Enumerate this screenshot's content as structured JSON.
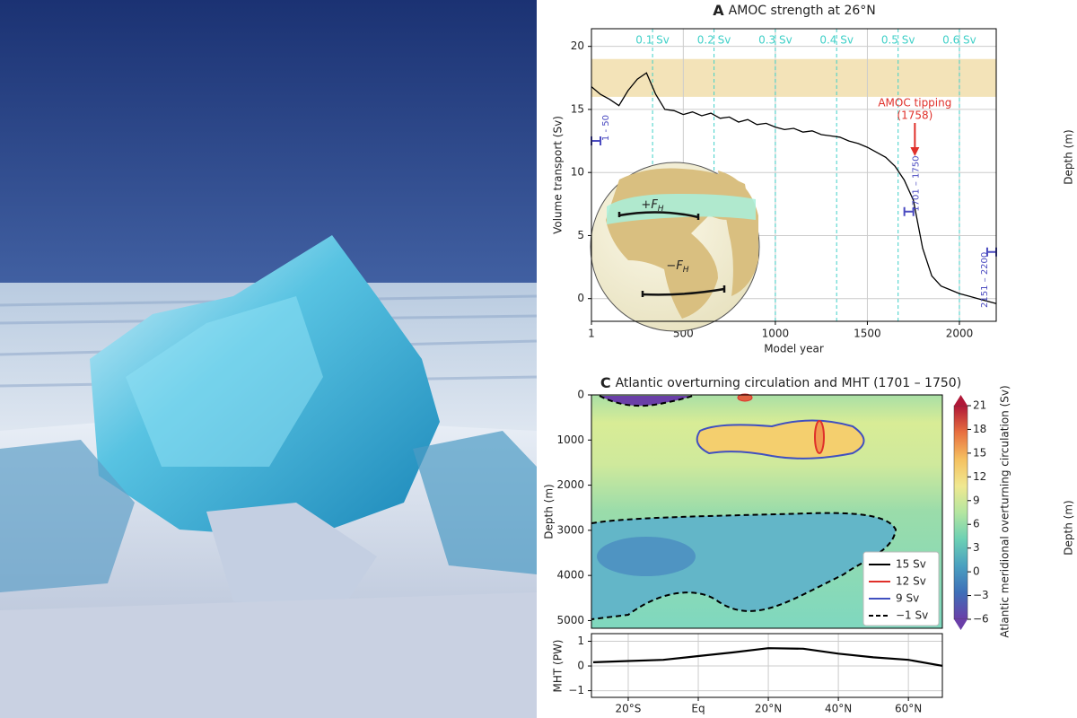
{
  "chart_data": [
    {
      "type": "line",
      "panel": "A",
      "title": "AMOC strength at 26°N",
      "x_label": "Model year",
      "y_label": "Volume transport (Sv)",
      "xlim": [
        1,
        2200
      ],
      "ylim": [
        -1.8,
        21.4
      ],
      "xticks": [
        1,
        500,
        1000,
        1500,
        2000
      ],
      "yticks": [
        0,
        5,
        10,
        15,
        20
      ],
      "grid": true,
      "band": [
        16,
        19
      ],
      "band_color": "#f3e3b8",
      "top_ticks": [
        {
          "value": 333,
          "label": "0.1 Sv"
        },
        {
          "value": 667,
          "label": "0.2 Sv"
        },
        {
          "value": 1000,
          "label": "0.3 Sv"
        },
        {
          "value": 1333,
          "label": "0.4 Sv"
        },
        {
          "value": 1667,
          "label": "0.5 Sv"
        },
        {
          "value": 2000,
          "label": "0.6 Sv"
        }
      ],
      "top_color": "#40d0c8",
      "x": [
        1,
        50,
        100,
        150,
        200,
        250,
        300,
        350,
        400,
        450,
        500,
        550,
        600,
        650,
        700,
        750,
        800,
        850,
        900,
        950,
        1000,
        1050,
        1100,
        1150,
        1200,
        1250,
        1300,
        1350,
        1400,
        1450,
        1500,
        1550,
        1600,
        1650,
        1700,
        1750,
        1800,
        1850,
        1900,
        1950,
        2000,
        2050,
        2100,
        2150,
        2200
      ],
      "series": [
        {
          "color": "#000000",
          "values": [
            16.8,
            16.2,
            15.8,
            15.3,
            16.5,
            17.4,
            17.9,
            16.2,
            15.0,
            14.9,
            14.6,
            14.8,
            14.5,
            14.7,
            14.3,
            14.4,
            14.0,
            14.2,
            13.8,
            13.9,
            13.6,
            13.4,
            13.5,
            13.2,
            13.3,
            13.0,
            12.9,
            12.8,
            12.5,
            12.3,
            12.0,
            11.6,
            11.2,
            10.5,
            9.4,
            7.8,
            4.0,
            1.8,
            1.0,
            0.7,
            0.4,
            0.2,
            0.0,
            -0.2,
            -0.4
          ]
        }
      ],
      "annotation": {
        "lines": [
          "AMOC tipping",
          "(1758)"
        ],
        "x": 1758,
        "color": "#e0302a"
      },
      "intervals": [
        {
          "label": "1 - 50",
          "start": 1,
          "end": 50,
          "y": 12.5
        },
        {
          "label": "1701 – 1750",
          "start": 1701,
          "end": 1750,
          "y": 6.9
        },
        {
          "label": "2151 – 2200",
          "start": 2151,
          "end": 2200,
          "y": 3.7
        }
      ],
      "interval_color": "#4a4ac0",
      "inset_labels": [
        {
          "main": "+F",
          "sub": "H"
        },
        {
          "main": "−F",
          "sub": "H"
        }
      ]
    },
    {
      "type": "contour",
      "panel": "C",
      "title": "Atlantic overturning circulation and MHT (1701 – 1750)",
      "y_label": "Depth (m)",
      "ylim": [
        0,
        5170
      ],
      "yticks": [
        0,
        1000,
        2000,
        3000,
        4000,
        5000
      ],
      "colorbar_label": "Atlantic meridional overturning circulation (Sv)",
      "colorbar_lim": [
        -6,
        21
      ],
      "colorbar_ticks": [
        {
          "value": -6,
          "label": "−6"
        },
        {
          "value": -3,
          "label": "−3"
        },
        0,
        3,
        6,
        9,
        12,
        15,
        18,
        21
      ],
      "colormap": [
        "#6a3fa8",
        "#3e6fb8",
        "#4aa0c0",
        "#6cd0b4",
        "#b4e6a0",
        "#f0e890",
        "#f5c060",
        "#e87040",
        "#b01838"
      ],
      "legend": [
        {
          "name": "15 Sv",
          "color": "#000000",
          "dashed": false
        },
        {
          "name": "12 Sv",
          "color": "#e0302a",
          "dashed": false
        },
        {
          "name": "9 Sv",
          "color": "#4050c0",
          "dashed": false
        },
        {
          "name": "−1 Sv",
          "color": "#000000",
          "dashed": true
        }
      ]
    },
    {
      "type": "line",
      "y_label": "MHT (PW)",
      "xlim": [
        -30.5,
        69.7
      ],
      "ylim": [
        -1.27,
        1.31
      ],
      "xticks": [
        {
          "value": -20,
          "label": "20°S"
        },
        {
          "value": 0,
          "label": "Eq"
        },
        {
          "value": 20,
          "label": "20°N"
        },
        {
          "value": 40,
          "label": "40°N"
        },
        {
          "value": 60,
          "label": "60°N"
        }
      ],
      "yticks": [
        {
          "value": -1,
          "label": "−1"
        },
        0,
        1
      ],
      "grid": true,
      "x": [
        -30,
        -20,
        -10,
        0,
        10,
        20,
        30,
        40,
        50,
        60,
        70
      ],
      "series": [
        {
          "color": "#000000",
          "values": [
            0.15,
            0.2,
            0.25,
            0.4,
            0.55,
            0.72,
            0.7,
            0.5,
            0.35,
            0.25,
            0.0
          ]
        }
      ]
    }
  ],
  "edge_labels": [
    "Depth (m)",
    "Depth (m)"
  ]
}
